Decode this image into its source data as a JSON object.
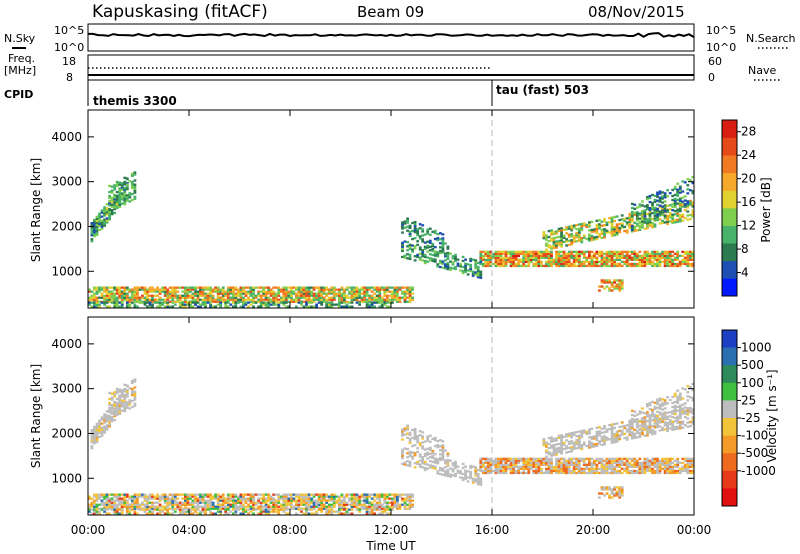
{
  "header": {
    "station": "Kapuskasing (fitACF)",
    "beam": "Beam 09",
    "date": "08/Nov/2015"
  },
  "strip_panels": {
    "nsky_label": "N.Sky",
    "nsearch_label": "N.Search",
    "noise_ticks_left": [
      "10^5",
      "10^0"
    ],
    "noise_ticks_right": [
      "10^5",
      "10^0"
    ],
    "freq_label_1": "Freq.",
    "freq_label_2": "[MHz]",
    "freq_ticks": [
      "18",
      "8"
    ],
    "nave_label": "Nave",
    "nave_ticks": [
      "60",
      "0"
    ],
    "cpid_label": "CPID",
    "cpid_segments": [
      {
        "name": "themis 3300",
        "start_hour": 0
      },
      {
        "name": "tau (fast) 503",
        "start_hour": 16
      }
    ]
  },
  "chart_data": [
    {
      "type": "heatmap",
      "title": "",
      "xlabel": "Time UT",
      "ylabel": "Slant Range [km]",
      "xlim": [
        0,
        24
      ],
      "ylim": [
        180,
        4600
      ],
      "x_ticks": [
        "00:00",
        "04:00",
        "08:00",
        "12:00",
        "16:00",
        "20:00",
        "00:00"
      ],
      "y_ticks": [
        1000,
        2000,
        3000,
        4000
      ],
      "colorbar": {
        "label": "Power [dB]",
        "ticks": [
          4,
          8,
          12,
          16,
          20,
          24,
          28
        ],
        "range": [
          0,
          30
        ],
        "colors": [
          "#0018ff",
          "#1d4fb2",
          "#2c7a4f",
          "#48b26a",
          "#7fcf4f",
          "#e0d030",
          "#f6a82a",
          "#ef7a21",
          "#e54a1a",
          "#d81e12"
        ]
      },
      "marker_hour": 16
    },
    {
      "type": "heatmap",
      "title": "",
      "xlabel": "Time UT",
      "ylabel": "Slant Range [km]",
      "xlim": [
        0,
        24
      ],
      "ylim": [
        180,
        4600
      ],
      "x_ticks": [
        "00:00",
        "04:00",
        "08:00",
        "12:00",
        "16:00",
        "20:00",
        "00:00"
      ],
      "y_ticks": [
        1000,
        2000,
        3000,
        4000
      ],
      "colorbar": {
        "label": "Velocity [m s⁻¹]",
        "ticks": [
          "1000",
          "500",
          "100",
          "25",
          "-25",
          "-100",
          "-500",
          "-1000"
        ],
        "colors": [
          "#1c3fc4",
          "#2a6fb0",
          "#2d8a5a",
          "#3fbf3f",
          "#bdbdbd",
          "#f2c43a",
          "#f39a28",
          "#ed6a1f",
          "#e83a18",
          "#e01010"
        ]
      },
      "marker_hour": 16,
      "time_axis_label": "Time UT"
    }
  ]
}
